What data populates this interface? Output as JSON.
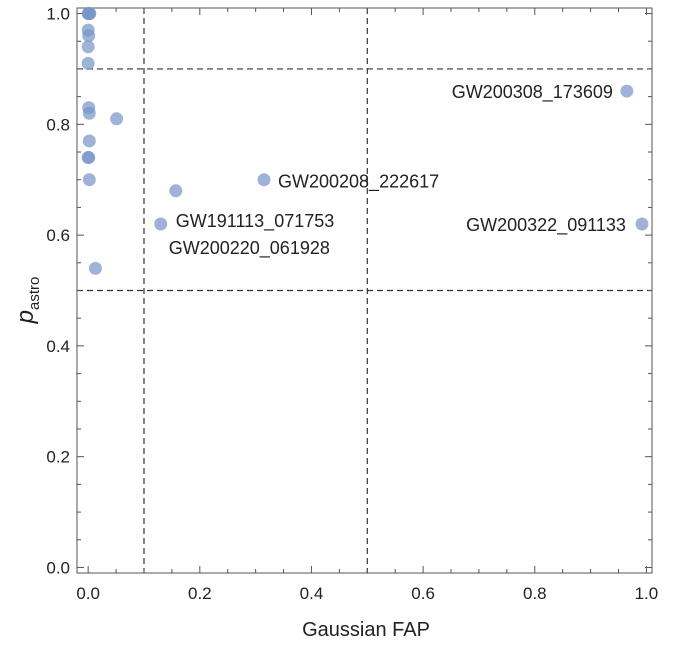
{
  "chart_data": {
    "type": "scatter",
    "xlabel": "Gaussian  FAP",
    "ylabel_main": "p",
    "ylabel_sub": "astro",
    "xlim": [
      -0.02,
      1.01
    ],
    "ylim": [
      -0.01,
      1.01
    ],
    "x_ticks": [
      0.0,
      0.2,
      0.4,
      0.6,
      0.8,
      1.0
    ],
    "x_tick_labels": [
      "0.0",
      "0.2",
      "0.4",
      "0.6",
      "0.8",
      "1.0"
    ],
    "y_ticks": [
      0.0,
      0.2,
      0.4,
      0.6,
      0.8,
      1.0
    ],
    "y_tick_labels": [
      "0.0",
      "0.2",
      "0.4",
      "0.6",
      "0.8",
      "1.0"
    ],
    "reference_lines": {
      "vertical": [
        0.1,
        0.5
      ],
      "horizontal": [
        0.5,
        0.9
      ],
      "style": "dashed"
    },
    "marker_color": "#7896c8",
    "points": [
      {
        "x": 0.0,
        "y": 1.0
      },
      {
        "x": 0.001,
        "y": 1.0
      },
      {
        "x": 0.002,
        "y": 1.0
      },
      {
        "x": 0.003,
        "y": 1.0
      },
      {
        "x": 0.0,
        "y": 0.97
      },
      {
        "x": 0.001,
        "y": 0.96
      },
      {
        "x": 0.0,
        "y": 0.94
      },
      {
        "x": 0.0,
        "y": 0.91
      },
      {
        "x": 0.001,
        "y": 0.83
      },
      {
        "x": 0.002,
        "y": 0.82
      },
      {
        "x": 0.051,
        "y": 0.81
      },
      {
        "x": 0.002,
        "y": 0.77
      },
      {
        "x": 0.0,
        "y": 0.74
      },
      {
        "x": 0.001,
        "y": 0.74
      },
      {
        "x": 0.002,
        "y": 0.7
      },
      {
        "x": 0.013,
        "y": 0.54
      },
      {
        "x": 0.965,
        "y": 0.86
      },
      {
        "x": 0.315,
        "y": 0.7
      },
      {
        "x": 0.157,
        "y": 0.68
      },
      {
        "x": 0.13,
        "y": 0.62
      },
      {
        "x": 0.992,
        "y": 0.62
      }
    ],
    "annotations": [
      {
        "text": "GW200308_173609",
        "x": 0.965,
        "y": 0.86,
        "anchor": "end",
        "dx": -14,
        "dy": 7
      },
      {
        "text": "GW200208_222617",
        "x": 0.315,
        "y": 0.7,
        "anchor": "start",
        "dx": 14,
        "dy": 8
      },
      {
        "text": "GW191113_071753",
        "x": 0.157,
        "y": 0.68,
        "anchor": "start",
        "dx": 0,
        "dy": 36
      },
      {
        "text": "GW200220_061928",
        "x": 0.13,
        "y": 0.62,
        "anchor": "start",
        "dx": 8,
        "dy": 30
      },
      {
        "text": "GW200322_091133",
        "x": 0.992,
        "y": 0.62,
        "anchor": "end",
        "dx": -16,
        "dy": 7
      }
    ]
  }
}
